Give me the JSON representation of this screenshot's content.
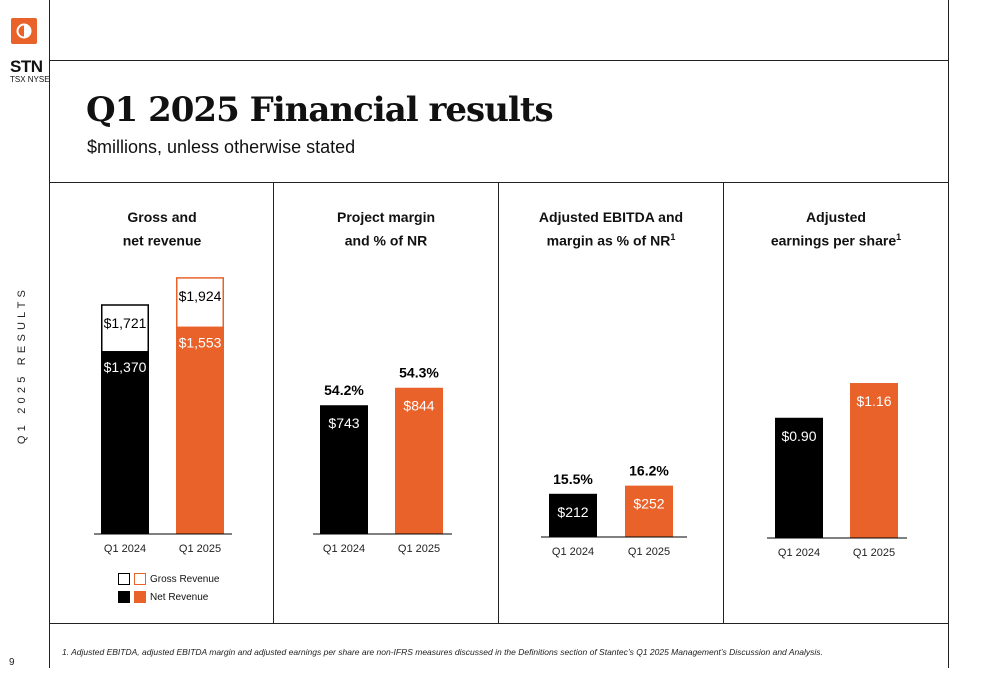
{
  "brand": {
    "ticker": "STN",
    "exchanges": "TSX NYSE",
    "accent": "#e8622a"
  },
  "side_label": "Q1 2025 RESULTS",
  "page_number": "9",
  "header": {
    "title": "Q1 2025 Financial results",
    "subtitle": "$millions, unless otherwise stated"
  },
  "panels": [
    {
      "title_line1": "Gross and",
      "title_line2": "net revenue",
      "title_sup": ""
    },
    {
      "title_line1": "Project margin",
      "title_line2": "and % of NR",
      "title_sup": ""
    },
    {
      "title_line1": "Adjusted EBITDA and",
      "title_line2": "margin as % of NR",
      "title_sup": "1"
    },
    {
      "title_line1": "Adjusted",
      "title_line2": "earnings per share",
      "title_sup": "1"
    }
  ],
  "legend": {
    "gross": "Gross Revenue",
    "net": "Net Revenue"
  },
  "footnote": "1.    Adjusted EBITDA, adjusted EBITDA margin and adjusted earnings per share are non-IFRS measures discussed in the Definitions section of Stantec’s Q1 2025 Management’s Discussion and Analysis.",
  "chart_data": [
    {
      "type": "bar",
      "title": "Gross and net revenue",
      "categories": [
        "Q1 2024",
        "Q1 2025"
      ],
      "series": [
        {
          "name": "Net Revenue",
          "values": [
            1370,
            1553
          ],
          "labels": [
            "$1,370",
            "$1,553"
          ]
        },
        {
          "name": "Gross Revenue",
          "values": [
            1721,
            1924
          ],
          "labels": [
            "$1,721",
            "$1,924"
          ]
        }
      ],
      "colors": [
        "#000000",
        "#e8622a"
      ]
    },
    {
      "type": "bar",
      "title": "Project margin and % of NR",
      "categories": [
        "Q1 2024",
        "Q1 2025"
      ],
      "values": [
        743,
        844
      ],
      "labels": [
        "$743",
        "$844"
      ],
      "percent_labels": [
        "54.2%",
        "54.3%"
      ],
      "colors": [
        "#000000",
        "#e8622a"
      ]
    },
    {
      "type": "bar",
      "title": "Adjusted EBITDA and margin as % of NR",
      "categories": [
        "Q1 2024",
        "Q1 2025"
      ],
      "values": [
        212,
        252
      ],
      "labels": [
        "$212",
        "$252"
      ],
      "percent_labels": [
        "15.5%",
        "16.2%"
      ],
      "colors": [
        "#000000",
        "#e8622a"
      ]
    },
    {
      "type": "bar",
      "title": "Adjusted earnings per share",
      "categories": [
        "Q1 2024",
        "Q1 2025"
      ],
      "values": [
        0.9,
        1.16
      ],
      "labels": [
        "$0.90",
        "$1.16"
      ],
      "colors": [
        "#000000",
        "#e8622a"
      ]
    }
  ]
}
